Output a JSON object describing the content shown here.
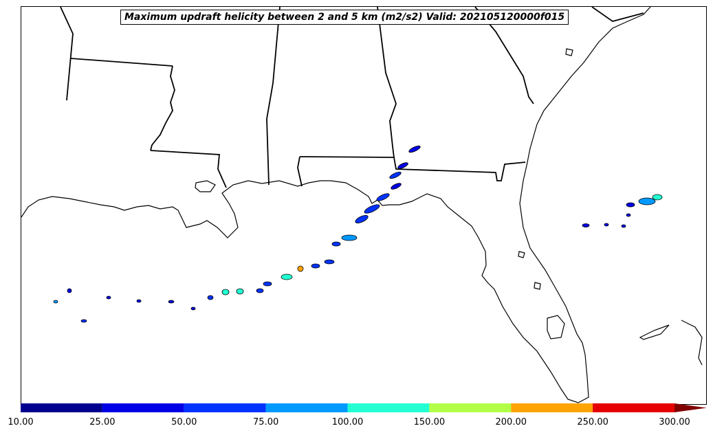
{
  "map": {
    "title": "Maximum updraft helicity between 2 and 5 km (m2/s2) Valid: 202105120000f015",
    "region": "Gulf of Mexico / Southeastern United States",
    "variable": "Maximum updraft helicity between 2 and 5 km",
    "units": "m2/s2",
    "valid_time": "202105120000f015"
  },
  "colorbar": {
    "levels": [
      "10.00",
      "25.00",
      "50.00",
      "75.00",
      "100.00",
      "150.00",
      "200.00",
      "250.00",
      "300.00"
    ],
    "colors": [
      "#00008f",
      "#0000e6",
      "#0033ff",
      "#0099ff",
      "#22ffd2",
      "#b2ff48",
      "#ffa300",
      "#e60000",
      "#800000"
    ],
    "extend": "max"
  },
  "colors": {
    "coastline": "#000000",
    "land": "#ffffff",
    "ocean": "#ffffff",
    "state_borders": "#000000"
  }
}
